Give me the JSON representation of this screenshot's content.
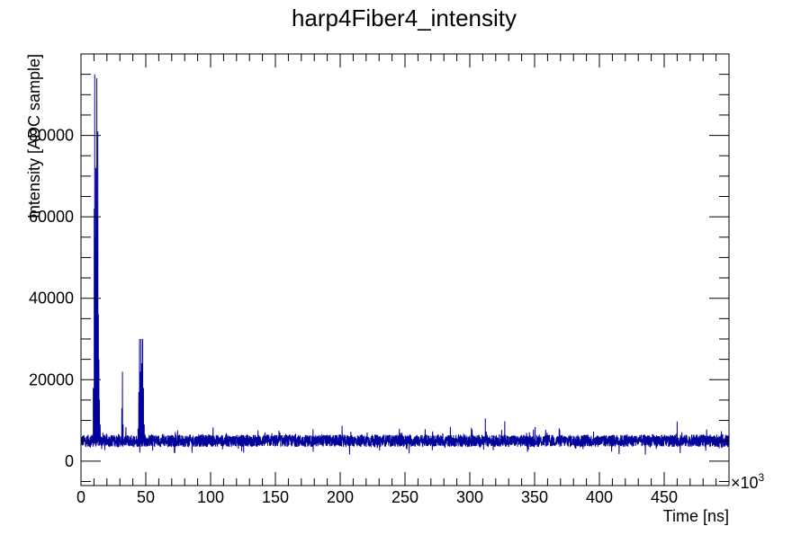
{
  "chart_data": {
    "type": "line",
    "title": "harp4Fiber4_intensity",
    "xlabel": "Time [ns]",
    "ylabel": "Intensity [ADC sample]",
    "x_multiplier_label": "×10",
    "x_multiplier_exponent": "3",
    "xlim": [
      0,
      500
    ],
    "ylim": [
      -6000,
      100000
    ],
    "x_ticks": [
      0,
      50,
      100,
      150,
      200,
      250,
      300,
      350,
      400,
      450
    ],
    "x_tick_labels": [
      "0",
      "50",
      "100",
      "150",
      "200",
      "250",
      "300",
      "350",
      "400",
      "450"
    ],
    "y_ticks": [
      0,
      20000,
      40000,
      60000,
      80000
    ],
    "y_tick_labels": [
      "0",
      "20000",
      "40000",
      "60000",
      "80000"
    ],
    "grid": false,
    "legend": "none",
    "series": [
      {
        "color": "#00009a",
        "baseline": 5000,
        "baseline_noise": 1500,
        "peaks": [
          {
            "x": 8.5,
            "y": 6500
          },
          {
            "x": 9.5,
            "y": 18000
          },
          {
            "x": 10.2,
            "y": 62000
          },
          {
            "x": 10.6,
            "y": 95000
          },
          {
            "x": 11.0,
            "y": 55000
          },
          {
            "x": 11.4,
            "y": 72000
          },
          {
            "x": 11.8,
            "y": 48000
          },
          {
            "x": 12.2,
            "y": 94000
          },
          {
            "x": 12.6,
            "y": 60000
          },
          {
            "x": 13.0,
            "y": 81000
          },
          {
            "x": 13.4,
            "y": 36000
          },
          {
            "x": 13.8,
            "y": 25000
          },
          {
            "x": 14.2,
            "y": 15000
          },
          {
            "x": 14.8,
            "y": 9000
          },
          {
            "x": 15.5,
            "y": 6000
          },
          {
            "x": 31.5,
            "y": 13000
          },
          {
            "x": 32.0,
            "y": 22000
          },
          {
            "x": 32.5,
            "y": 9000
          },
          {
            "x": 44.0,
            "y": 8000
          },
          {
            "x": 44.6,
            "y": 17000
          },
          {
            "x": 45.2,
            "y": 30000
          },
          {
            "x": 45.8,
            "y": 22000
          },
          {
            "x": 46.4,
            "y": 30000
          },
          {
            "x": 47.0,
            "y": 24000
          },
          {
            "x": 47.6,
            "y": 30000
          },
          {
            "x": 48.2,
            "y": 18000
          },
          {
            "x": 48.8,
            "y": 9000
          },
          {
            "x": 49.5,
            "y": 6500
          },
          {
            "x": 312,
            "y": 10500
          },
          {
            "x": 327,
            "y": 9800
          },
          {
            "x": 460,
            "y": 9700
          }
        ]
      }
    ]
  }
}
